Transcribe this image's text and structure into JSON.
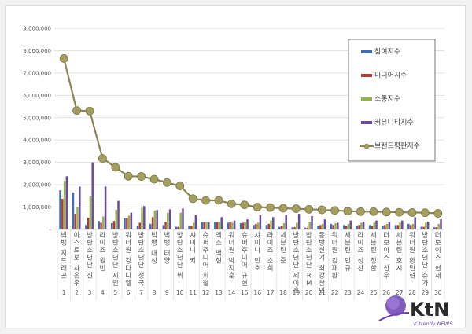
{
  "chart_data": {
    "type": "bar",
    "title": "",
    "xlabel": "",
    "ylabel": "",
    "ylim": [
      0,
      9000000
    ],
    "yticks": [
      "-",
      "1,000,000",
      "2,000,000",
      "3,000,000",
      "4,000,000",
      "5,000,000",
      "6,000,000",
      "7,000,000",
      "8,000,000",
      "9,000,000"
    ],
    "grid": true,
    "legend_position": "upper right",
    "categories": [
      "빅뱅 지드래곤",
      "아스트로 차은우",
      "방탄소년단 진",
      "라이즈 원빈",
      "방탄소년단 지민",
      "워너원 강다니엘",
      "방탄소년단 정국",
      "빅뱅 대성",
      "빅뱅 태양",
      "방탄소년단 뷔",
      "샤이니 키",
      "슈퍼주니어 희철",
      "엑소 백현",
      "워너원 박지훈",
      "슈퍼주니어 규현",
      "샤이니 민호",
      "라이즈 소희",
      "세븐틴 준",
      "방탄소년단 제이홉",
      "방탄소년단 RM",
      "동방신기 최강창민",
      "워너원 김재환",
      "세븐틴 민규",
      "라이즈 성찬",
      "세븐틴 정한",
      "더보이즈 선우",
      "세븐틴 호시",
      "워너원 황민현",
      "방탄소년단 슈가",
      "더보이즈 현재"
    ],
    "ranks": [
      "1",
      "2",
      "3",
      "4",
      "5",
      "6",
      "7",
      "8",
      "9",
      "10",
      "11",
      "12",
      "13",
      "14",
      "15",
      "16",
      "17",
      "18",
      "19",
      "20",
      "21",
      "22",
      "23",
      "24",
      "25",
      "26",
      "27",
      "28",
      "29",
      "30"
    ],
    "series": [
      {
        "name": "참여지수",
        "type": "bar",
        "color": "#3e6fb0",
        "values": [
          1750000,
          1650000,
          200000,
          380000,
          280000,
          500000,
          150000,
          250000,
          200000,
          120000,
          150000,
          320000,
          320000,
          300000,
          280000,
          200000,
          200000,
          120000,
          100000,
          80000,
          150000,
          250000,
          200000,
          150000,
          200000,
          150000,
          200000,
          250000,
          120000,
          100000
        ]
      },
      {
        "name": "미디어지수",
        "type": "bar",
        "color": "#b03a36",
        "values": [
          1370000,
          700000,
          520000,
          300000,
          380000,
          500000,
          300000,
          550000,
          350000,
          120000,
          150000,
          320000,
          320000,
          320000,
          300000,
          250000,
          250000,
          150000,
          100000,
          80000,
          200000,
          200000,
          150000,
          200000,
          150000,
          200000,
          200000,
          200000,
          120000,
          100000
        ]
      },
      {
        "name": "소통지수",
        "type": "bar",
        "color": "#93b24a",
        "values": [
          2170000,
          1020000,
          1500000,
          580000,
          880000,
          620000,
          970000,
          850000,
          750000,
          750000,
          300000,
          320000,
          320000,
          300000,
          320000,
          300000,
          400000,
          280000,
          300000,
          350000,
          250000,
          280000,
          250000,
          300000,
          300000,
          250000,
          300000,
          250000,
          300000,
          250000
        ]
      },
      {
        "name": "커뮤니티지수",
        "type": "bar",
        "color": "#6b4a9a",
        "values": [
          2380000,
          1920000,
          3000000,
          1920000,
          1280000,
          750000,
          1050000,
          870000,
          900000,
          930000,
          650000,
          320000,
          550000,
          400000,
          450000,
          650000,
          550000,
          650000,
          700000,
          600000,
          450000,
          300000,
          400000,
          350000,
          400000,
          350000,
          400000,
          550000,
          350000,
          450000
        ]
      },
      {
        "name": "브랜드평판지수",
        "type": "line",
        "color": "#8c8550",
        "values": [
          7650000,
          5320000,
          5300000,
          3180000,
          2780000,
          2380000,
          2370000,
          2250000,
          2100000,
          1950000,
          1380000,
          1300000,
          1300000,
          1150000,
          1100000,
          1000000,
          980000,
          950000,
          930000,
          900000,
          880000,
          850000,
          820000,
          800000,
          800000,
          780000,
          770000,
          760000,
          750000,
          720000
        ]
      }
    ]
  },
  "legend": {
    "items": [
      "참여지수",
      "미디어지수",
      "소통지수",
      "커뮤니티지수",
      "브랜드평판지수"
    ]
  },
  "watermark": {
    "logo": "KtN",
    "subtitle": "K trendy NEWS"
  }
}
